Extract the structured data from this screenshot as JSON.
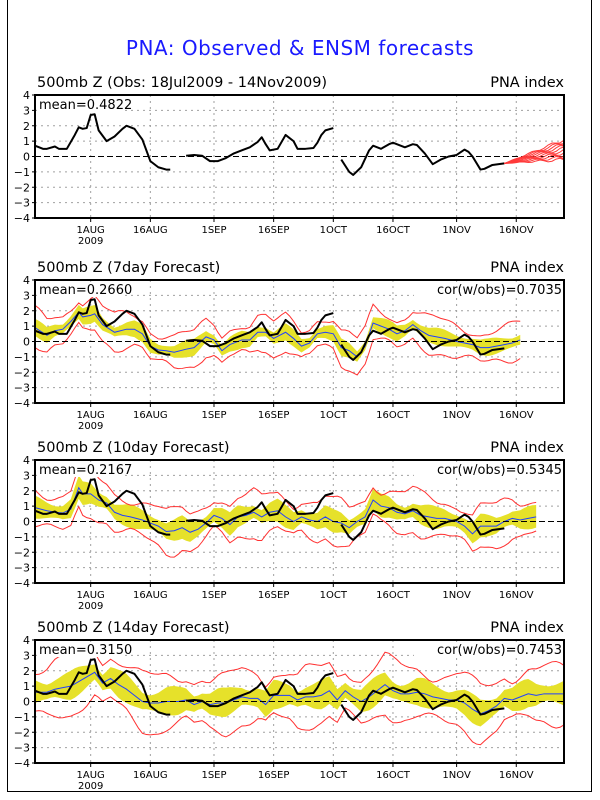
{
  "main_title": "PNA: Observed & ENSM forecasts",
  "colors": {
    "title": "#1a1aff",
    "observed": "#000000",
    "ensemble_mean": "#2040ff",
    "spread_fill": "#e6e12a",
    "envelope": "#ff3030",
    "member_forecasts": "#ff3a3a",
    "grid": "#a0a0a0"
  },
  "chart_data": [
    {
      "type": "line",
      "title": "500mb Z (Obs: 18Jul2009 - 14Nov2009)",
      "right_title": "PNA index",
      "annotation_left": "mean=0.4822",
      "annotation_right": "",
      "ylim": [
        -4,
        4
      ],
      "yticks": [
        4,
        3,
        2,
        1,
        0,
        -1,
        -2,
        -3,
        -4
      ],
      "xlim_days_from_18Jul2009": [
        0,
        133
      ],
      "xticks": [
        {
          "day": 14,
          "label": "1AUG",
          "sub": "2009"
        },
        {
          "day": 29,
          "label": "16AUG",
          "sub": ""
        },
        {
          "day": 45,
          "label": "1SEP",
          "sub": ""
        },
        {
          "day": 60,
          "label": "16SEP",
          "sub": ""
        },
        {
          "day": 75,
          "label": "1OCT",
          "sub": ""
        },
        {
          "day": 90,
          "label": "16OCT",
          "sub": ""
        },
        {
          "day": 106,
          "label": "1NOV",
          "sub": ""
        },
        {
          "day": 121,
          "label": "16NOV",
          "sub": ""
        }
      ],
      "grid": true,
      "observed_segments": [
        [
          [
            0,
            0.7
          ],
          [
            2,
            0.5
          ],
          [
            3,
            0.5
          ],
          [
            5,
            0.65
          ],
          [
            6,
            0.5
          ],
          [
            8,
            0.5
          ],
          [
            10,
            1.4
          ],
          [
            11,
            1.9
          ],
          [
            12,
            1.8
          ],
          [
            13,
            1.85
          ],
          [
            14,
            2.7
          ],
          [
            15,
            2.75
          ],
          [
            16,
            1.7
          ],
          [
            18,
            1.0
          ],
          [
            20,
            1.3
          ],
          [
            22,
            1.8
          ],
          [
            23,
            2.0
          ],
          [
            25,
            1.8
          ],
          [
            27,
            1.1
          ],
          [
            29,
            -0.3
          ],
          [
            31,
            -0.7
          ],
          [
            33,
            -0.85
          ],
          [
            34,
            -0.85
          ]
        ],
        [
          [
            38,
            0.05
          ],
          [
            40,
            0.1
          ],
          [
            42,
            0.05
          ],
          [
            44,
            -0.3
          ],
          [
            46,
            -0.3
          ],
          [
            48,
            -0.1
          ],
          [
            50,
            0.2
          ],
          [
            52,
            0.4
          ],
          [
            54,
            0.6
          ],
          [
            56,
            0.95
          ],
          [
            57,
            1.25
          ],
          [
            58,
            0.8
          ],
          [
            59,
            0.4
          ],
          [
            61,
            0.5
          ],
          [
            63,
            1.4
          ],
          [
            64,
            1.2
          ],
          [
            65,
            1.0
          ],
          [
            66,
            0.5
          ],
          [
            68,
            0.5
          ],
          [
            70,
            0.55
          ],
          [
            71,
            0.9
          ],
          [
            72,
            1.4
          ],
          [
            73,
            1.7
          ],
          [
            75,
            1.85
          ]
        ],
        [
          [
            77,
            -0.2
          ],
          [
            79,
            -1.0
          ],
          [
            80,
            -1.2
          ],
          [
            82,
            -0.7
          ],
          [
            84,
            0.4
          ],
          [
            85,
            0.7
          ],
          [
            87,
            0.5
          ],
          [
            89,
            0.8
          ],
          [
            90,
            0.9
          ],
          [
            93,
            0.6
          ],
          [
            95,
            0.8
          ],
          [
            96,
            0.75
          ],
          [
            98,
            0.2
          ],
          [
            100,
            -0.5
          ],
          [
            102,
            -0.2
          ],
          [
            104,
            0.0
          ],
          [
            106,
            0.1
          ],
          [
            108,
            0.45
          ],
          [
            109,
            0.3
          ],
          [
            110,
            0.0
          ],
          [
            112,
            -0.85
          ],
          [
            113,
            -0.8
          ],
          [
            115,
            -0.55
          ],
          [
            118,
            -0.45
          ]
        ]
      ],
      "member_forecasts_start_day": 118,
      "member_forecasts_end_day": 133,
      "member_forecasts_range_end": [
        -0.2,
        1.1
      ]
    },
    {
      "type": "line",
      "title": "500mb Z (7day Forecast)",
      "right_title": "PNA index",
      "annotation_left": "mean=0.2660",
      "annotation_right": "cor(w/obs)=0.7035",
      "ylim": [
        -4,
        4
      ],
      "ensemble_mean": [
        [
          0,
          0.9
        ],
        [
          3,
          0.4
        ],
        [
          5,
          0.7
        ],
        [
          7,
          0.8
        ],
        [
          9,
          1.3
        ],
        [
          11,
          1.9
        ],
        [
          12,
          1.6
        ],
        [
          14,
          1.7
        ],
        [
          15,
          1.8
        ],
        [
          17,
          1.1
        ],
        [
          20,
          0.6
        ],
        [
          23,
          0.8
        ],
        [
          25,
          0.8
        ],
        [
          27,
          0.5
        ],
        [
          29,
          -0.3
        ],
        [
          31,
          -0.55
        ],
        [
          33,
          -0.6
        ],
        [
          35,
          -0.7
        ],
        [
          38,
          -0.5
        ],
        [
          40,
          -0.4
        ],
        [
          43,
          0.3
        ],
        [
          45,
          0.1
        ],
        [
          47,
          -0.6
        ],
        [
          49,
          -0.2
        ],
        [
          52,
          0.1
        ],
        [
          54,
          0.1
        ],
        [
          56,
          0.6
        ],
        [
          58,
          0.6
        ],
        [
          60,
          0.2
        ],
        [
          63,
          0.6
        ],
        [
          65,
          0.2
        ],
        [
          67,
          -0.3
        ],
        [
          69,
          -0.1
        ],
        [
          71,
          0.5
        ],
        [
          73,
          0.6
        ],
        [
          75,
          0.5
        ],
        [
          77,
          -0.4
        ],
        [
          79,
          -0.6
        ],
        [
          81,
          -1.0
        ],
        [
          83,
          -0.3
        ],
        [
          85,
          1.2
        ],
        [
          87,
          1.0
        ],
        [
          89,
          0.8
        ],
        [
          91,
          0.5
        ],
        [
          93,
          0.7
        ],
        [
          95,
          1.1
        ],
        [
          97,
          0.7
        ],
        [
          99,
          0.4
        ],
        [
          101,
          0.3
        ],
        [
          103,
          0.2
        ],
        [
          106,
          0.0
        ],
        [
          108,
          -0.1
        ],
        [
          110,
          -0.2
        ],
        [
          112,
          -0.4
        ],
        [
          114,
          -0.4
        ],
        [
          116,
          -0.3
        ],
        [
          118,
          -0.2
        ],
        [
          120,
          -0.1
        ],
        [
          122,
          0.1
        ]
      ],
      "spread_half_width": 0.45,
      "envelope_half_width": 1.0,
      "observed_ref": 0
    },
    {
      "type": "line",
      "title": "500mb Z (10day Forecast)",
      "right_title": "PNA index",
      "annotation_left": "mean=0.2167",
      "annotation_right": "cor(w/obs)=0.5345",
      "ylim": [
        -4,
        4
      ],
      "ensemble_mean": [
        [
          0,
          0.9
        ],
        [
          3,
          0.7
        ],
        [
          5,
          0.6
        ],
        [
          7,
          0.55
        ],
        [
          9,
          0.8
        ],
        [
          11,
          2.2
        ],
        [
          12,
          1.8
        ],
        [
          14,
          1.8
        ],
        [
          16,
          1.4
        ],
        [
          18,
          1.2
        ],
        [
          20,
          0.6
        ],
        [
          22,
          0.4
        ],
        [
          24,
          0.3
        ],
        [
          27,
          0.1
        ],
        [
          29,
          -0.1
        ],
        [
          31,
          -0.3
        ],
        [
          33,
          -0.65
        ],
        [
          35,
          -0.6
        ],
        [
          37,
          -0.4
        ],
        [
          39,
          -0.7
        ],
        [
          41,
          -0.5
        ],
        [
          43,
          -0.1
        ],
        [
          45,
          0.4
        ],
        [
          47,
          0.2
        ],
        [
          49,
          -0.2
        ],
        [
          51,
          0.3
        ],
        [
          53,
          0.4
        ],
        [
          55,
          0.6
        ],
        [
          57,
          0.3
        ],
        [
          59,
          0.6
        ],
        [
          61,
          0.7
        ],
        [
          63,
          0.3
        ],
        [
          65,
          0.0
        ],
        [
          67,
          0.3
        ],
        [
          69,
          0.1
        ],
        [
          71,
          0.0
        ],
        [
          73,
          0.3
        ],
        [
          75,
          0.0
        ],
        [
          77,
          -0.1
        ],
        [
          79,
          -0.4
        ],
        [
          81,
          0.0
        ],
        [
          83,
          0.3
        ],
        [
          85,
          1.4
        ],
        [
          87,
          1.0
        ],
        [
          89,
          0.9
        ],
        [
          91,
          0.6
        ],
        [
          93,
          0.5
        ],
        [
          95,
          0.7
        ],
        [
          97,
          0.4
        ],
        [
          99,
          0.3
        ],
        [
          101,
          0.2
        ],
        [
          103,
          0.2
        ],
        [
          106,
          0.0
        ],
        [
          108,
          -0.3
        ],
        [
          110,
          -0.8
        ],
        [
          112,
          -0.3
        ],
        [
          114,
          -0.3
        ],
        [
          116,
          -0.3
        ],
        [
          118,
          0.0
        ],
        [
          120,
          0.2
        ],
        [
          122,
          0.1
        ],
        [
          124,
          0.2
        ],
        [
          126,
          0.3
        ]
      ],
      "spread_half_width": 0.6,
      "envelope_half_width": 1.2,
      "observed_ref": 0
    },
    {
      "type": "line",
      "title": "500mb Z (14day Forecast)",
      "right_title": "PNA index",
      "annotation_left": "mean=0.3150",
      "annotation_right": "cor(w/obs)=0.7453",
      "ylim": [
        -4,
        4
      ],
      "ensemble_mean": [
        [
          0,
          0.6
        ],
        [
          3,
          0.6
        ],
        [
          5,
          0.8
        ],
        [
          7,
          0.9
        ],
        [
          9,
          1.0
        ],
        [
          11,
          1.3
        ],
        [
          13,
          1.6
        ],
        [
          15,
          1.9
        ],
        [
          17,
          1.2
        ],
        [
          19,
          1.5
        ],
        [
          21,
          1.1
        ],
        [
          23,
          0.8
        ],
        [
          25,
          0.4
        ],
        [
          27,
          0.0
        ],
        [
          29,
          -0.1
        ],
        [
          31,
          -0.1
        ],
        [
          33,
          0.0
        ],
        [
          36,
          0.0
        ],
        [
          38,
          0.1
        ],
        [
          40,
          -0.2
        ],
        [
          42,
          0.0
        ],
        [
          44,
          -0.2
        ],
        [
          46,
          -0.1
        ],
        [
          48,
          -0.1
        ],
        [
          50,
          0.1
        ],
        [
          52,
          0.3
        ],
        [
          54,
          0.2
        ],
        [
          56,
          0.2
        ],
        [
          58,
          -0.2
        ],
        [
          60,
          0.4
        ],
        [
          62,
          0.4
        ],
        [
          64,
          0.4
        ],
        [
          66,
          0.1
        ],
        [
          68,
          0.3
        ],
        [
          70,
          0.3
        ],
        [
          72,
          0.4
        ],
        [
          74,
          0.7
        ],
        [
          76,
          0.1
        ],
        [
          78,
          0.7
        ],
        [
          80,
          0.3
        ],
        [
          82,
          0.0
        ],
        [
          84,
          0.3
        ],
        [
          86,
          0.7
        ],
        [
          88,
          1.1
        ],
        [
          90,
          0.7
        ],
        [
          92,
          0.5
        ],
        [
          94,
          0.5
        ],
        [
          96,
          0.6
        ],
        [
          98,
          0.5
        ],
        [
          100,
          0.3
        ],
        [
          102,
          0.2
        ],
        [
          104,
          0.1
        ],
        [
          106,
          0.1
        ],
        [
          108,
          -0.1
        ],
        [
          110,
          -0.5
        ],
        [
          112,
          -0.8
        ],
        [
          114,
          -0.6
        ],
        [
          116,
          -0.3
        ],
        [
          118,
          0.2
        ],
        [
          120,
          0.1
        ],
        [
          122,
          0.3
        ],
        [
          124,
          0.5
        ],
        [
          126,
          0.4
        ],
        [
          128,
          0.5
        ],
        [
          130,
          0.5
        ],
        [
          133,
          0.5
        ]
      ],
      "spread_half_width": 0.75,
      "envelope_half_width": 1.6,
      "observed_ref": 0
    }
  ]
}
